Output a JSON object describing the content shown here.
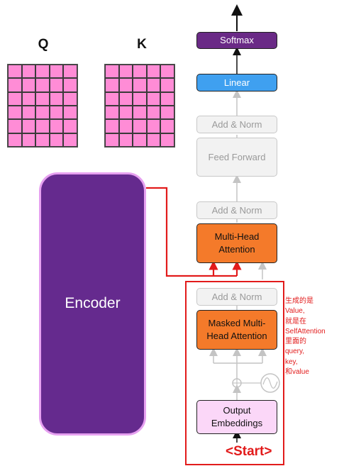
{
  "matrices": {
    "q_label": "Q",
    "k_label": "K"
  },
  "decoder": {
    "softmax": "Softmax",
    "linear": "Linear",
    "add_norm_top": "Add & Norm",
    "feed_forward": "Feed Forward",
    "add_norm_mid": "Add & Norm",
    "multi_head_attention": "Multi-Head\nAttention",
    "add_norm_bottom": "Add & Norm",
    "masked_multi_head_attention": "Masked Multi-\nHead Attention",
    "output_embeddings": "Output\nEmbeddings"
  },
  "encoder": {
    "label": "Encoder"
  },
  "annotation": {
    "note": "生成的是\nValue,\n就是在\nSelfAttention\n里面的\nquery,\nkey,\n和value",
    "start_token": "<Start>"
  },
  "colors": {
    "softmax": "#6a2a86",
    "linear": "#3fa0f0",
    "attention": "#f47a2a",
    "embeddings": "#fbd7f8",
    "encoder": "#652a8e",
    "matrix_cell": "#ff8cd6",
    "highlight": "#e21b1b"
  }
}
